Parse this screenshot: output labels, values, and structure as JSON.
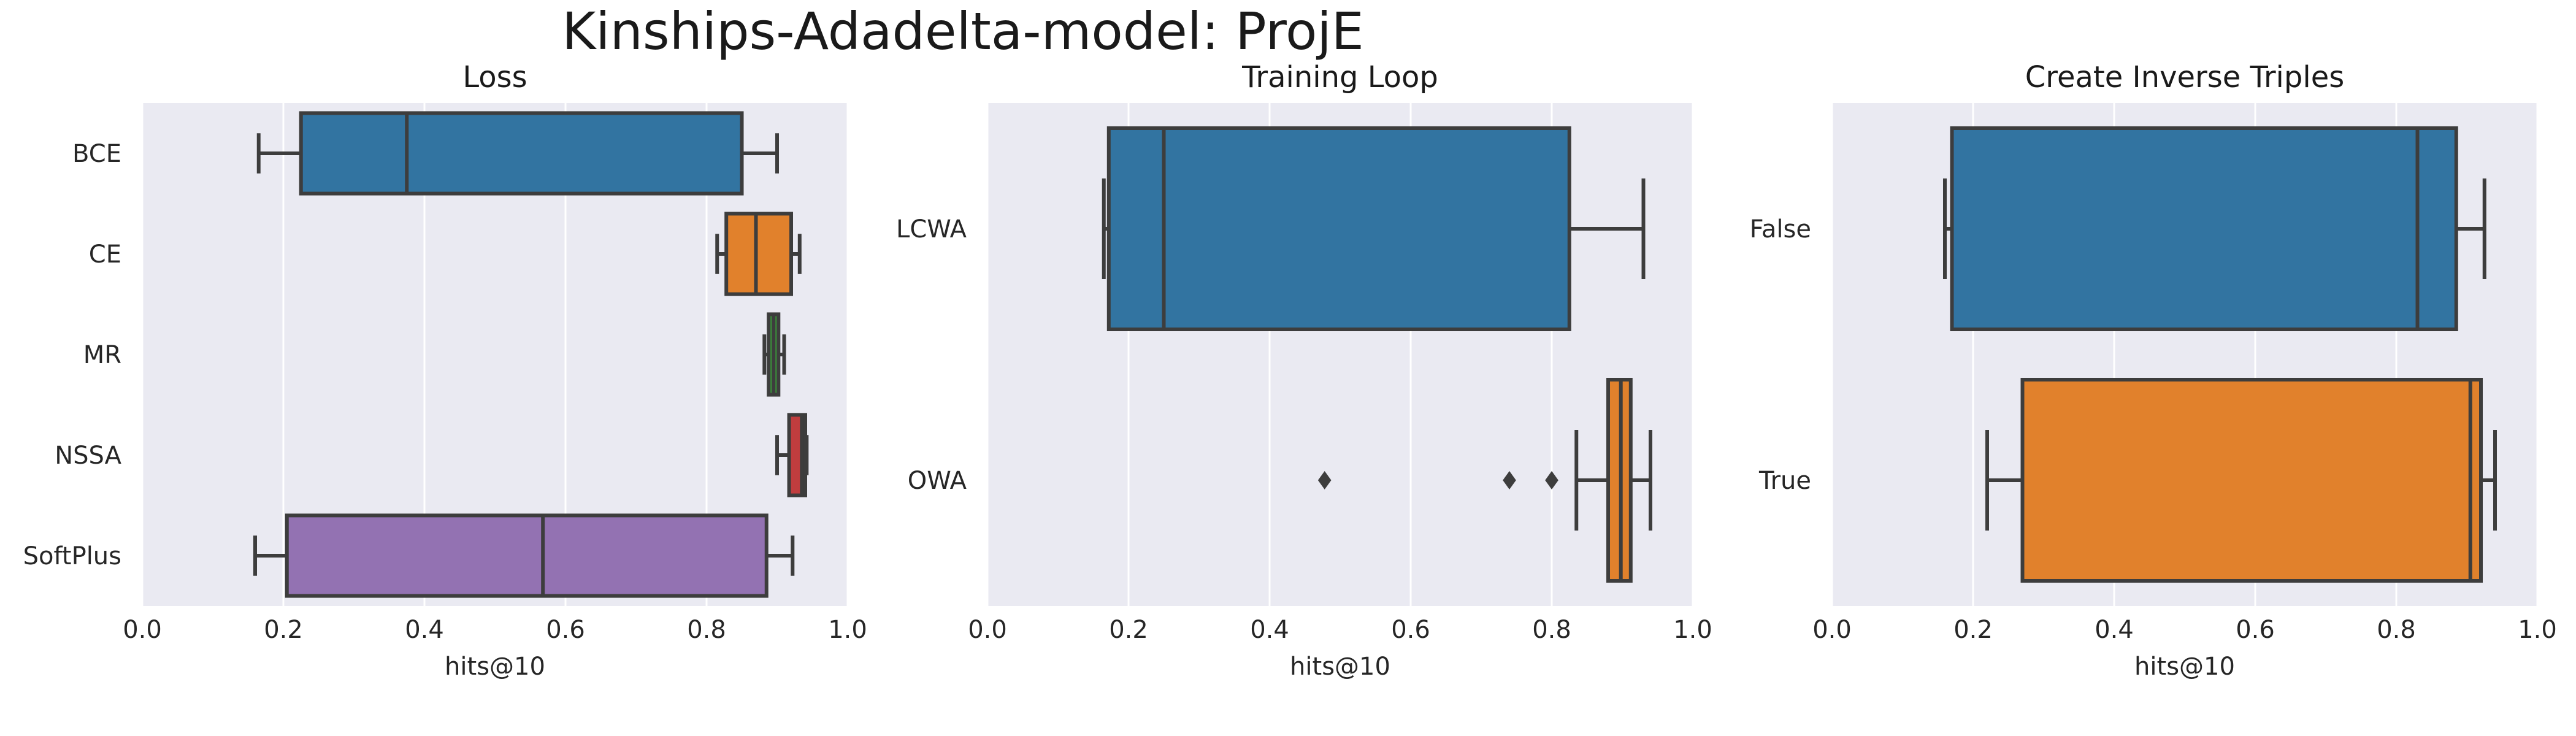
{
  "title": "Kinships-Adadelta-model: ProjE",
  "chart_data": [
    {
      "type": "box",
      "orientation": "horizontal",
      "title": "Loss",
      "xlabel": "hits@10",
      "ylabel": "",
      "xlim": [
        0.0,
        1.0
      ],
      "xticks": [
        "0.0",
        "0.2",
        "0.4",
        "0.6",
        "0.8",
        "1.0"
      ],
      "grid": true,
      "categories": [
        "BCE",
        "CE",
        "MR",
        "NSSA",
        "SoftPlus"
      ],
      "boxes": [
        {
          "name": "BCE",
          "color": "#3274a1",
          "whislo": 0.165,
          "q1": 0.225,
          "median": 0.375,
          "q3": 0.85,
          "whishi": 0.9,
          "fliers": []
        },
        {
          "name": "CE",
          "color": "#e1812c",
          "whislo": 0.815,
          "q1": 0.828,
          "median": 0.87,
          "q3": 0.92,
          "whishi": 0.932,
          "fliers": []
        },
        {
          "name": "MR",
          "color": "#3a923a",
          "whislo": 0.882,
          "q1": 0.888,
          "median": 0.895,
          "q3": 0.902,
          "whishi": 0.91,
          "fliers": []
        },
        {
          "name": "NSSA",
          "color": "#c03d3e",
          "whislo": 0.9,
          "q1": 0.917,
          "median": 0.935,
          "q3": 0.94,
          "whishi": 0.942,
          "fliers": []
        },
        {
          "name": "SoftPlus",
          "color": "#9372b2",
          "whislo": 0.16,
          "q1": 0.205,
          "median": 0.568,
          "q3": 0.885,
          "whishi": 0.922,
          "fliers": []
        }
      ]
    },
    {
      "type": "box",
      "orientation": "horizontal",
      "title": "Training Loop",
      "xlabel": "hits@10",
      "ylabel": "",
      "xlim": [
        0.0,
        1.0
      ],
      "xticks": [
        "0.0",
        "0.2",
        "0.4",
        "0.6",
        "0.8",
        "1.0"
      ],
      "grid": true,
      "categories": [
        "LCWA",
        "OWA"
      ],
      "boxes": [
        {
          "name": "LCWA",
          "color": "#3274a1",
          "whislo": 0.165,
          "q1": 0.172,
          "median": 0.25,
          "q3": 0.825,
          "whishi": 0.93,
          "fliers": []
        },
        {
          "name": "OWA",
          "color": "#e1812c",
          "whislo": 0.835,
          "q1": 0.88,
          "median": 0.898,
          "q3": 0.912,
          "whishi": 0.94,
          "fliers": [
            0.478,
            0.74,
            0.8
          ]
        }
      ]
    },
    {
      "type": "box",
      "orientation": "horizontal",
      "title": "Create Inverse Triples",
      "xlabel": "hits@10",
      "ylabel": "",
      "xlim": [
        0.0,
        1.0
      ],
      "xticks": [
        "0.0",
        "0.2",
        "0.4",
        "0.6",
        "0.8",
        "1.0"
      ],
      "grid": true,
      "categories": [
        "False",
        "True"
      ],
      "boxes": [
        {
          "name": "False",
          "color": "#3274a1",
          "whislo": 0.16,
          "q1": 0.17,
          "median": 0.83,
          "q3": 0.885,
          "whishi": 0.925,
          "fliers": []
        },
        {
          "name": "True",
          "color": "#e1812c",
          "whislo": 0.22,
          "q1": 0.27,
          "median": 0.905,
          "q3": 0.92,
          "whishi": 0.94,
          "fliers": []
        }
      ]
    }
  ]
}
